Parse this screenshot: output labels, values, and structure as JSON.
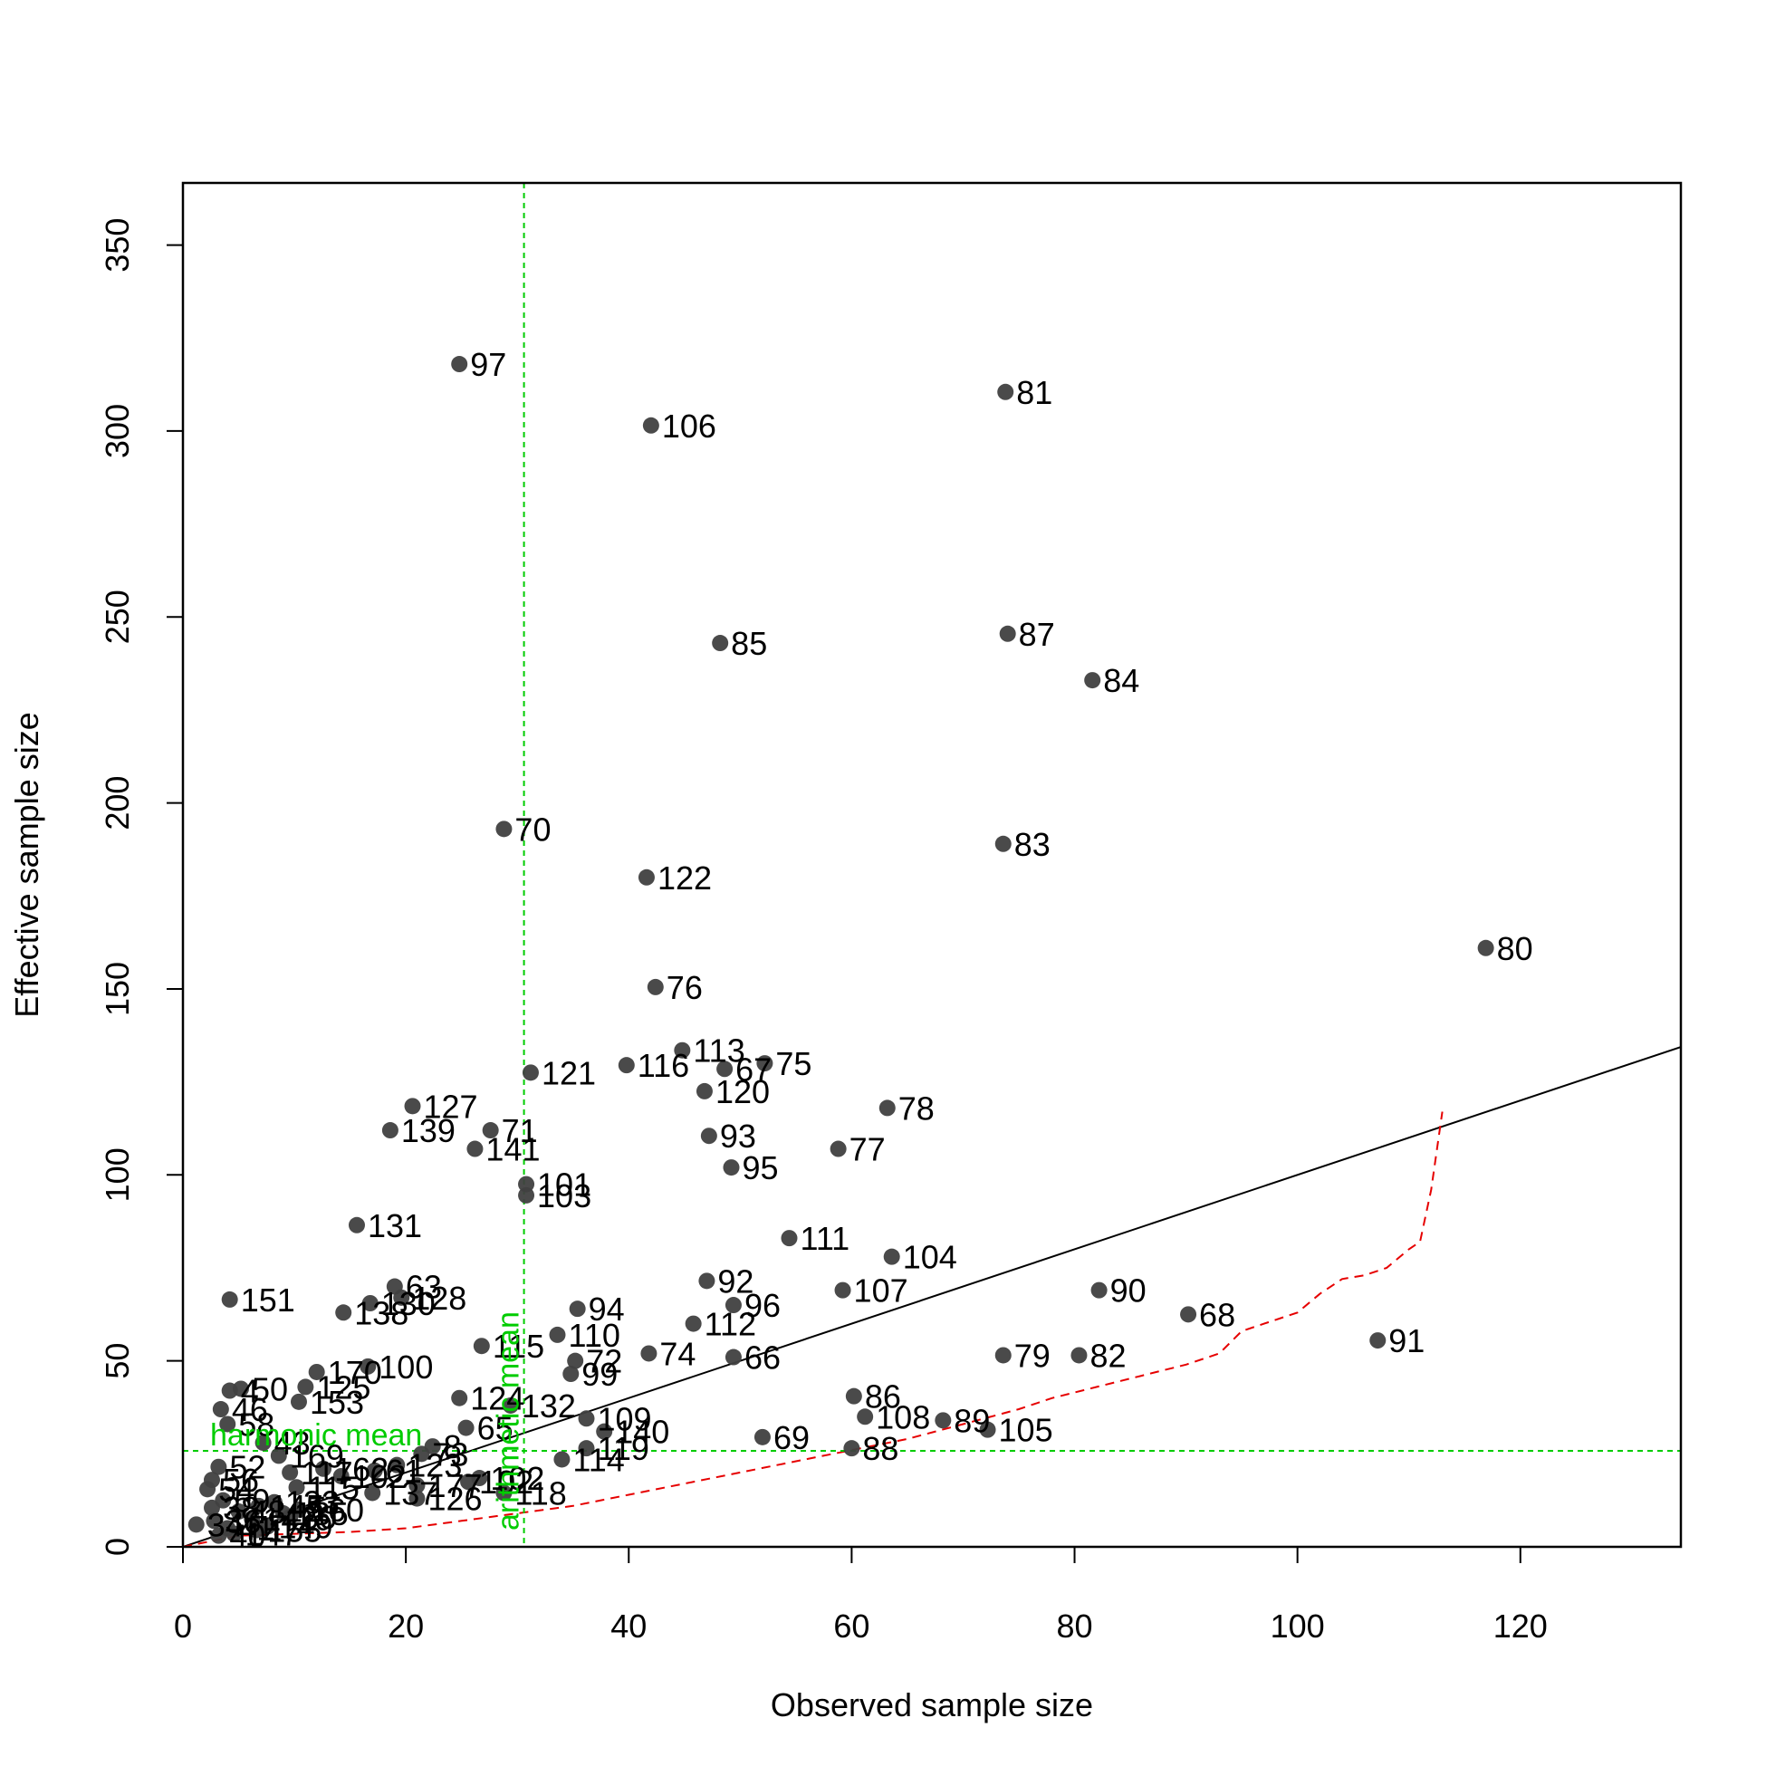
{
  "chart_data": {
    "type": "scatter",
    "xlabel": "Observed sample size",
    "ylabel": "Effective sample size",
    "xlim": [
      0,
      134.4
    ],
    "ylim": [
      0,
      366.7
    ],
    "xticks": [
      "0",
      "20",
      "40",
      "60",
      "80",
      "100",
      "120"
    ],
    "yticks": [
      "0",
      "50",
      "100",
      "150",
      "200",
      "250",
      "300",
      "350"
    ],
    "grid": false,
    "point_color": "#404040",
    "regression_color": "#000000",
    "reference_color": "#00cc00",
    "bound_color": "#e60000",
    "reference_lines": {
      "arithmetic_mean": {
        "label": "arithmetic mean",
        "x": 30.6
      },
      "harmonic_mean": {
        "label": "harmonic mean",
        "y": 25.8
      }
    },
    "regression_line": {
      "x": [
        0,
        134.4
      ],
      "y": [
        0,
        134.4
      ]
    },
    "lower_bound_curve": {
      "x": [
        0,
        5,
        10,
        15,
        20,
        25,
        30,
        35,
        40,
        45,
        50,
        55,
        60,
        65,
        70,
        75,
        78,
        82,
        86,
        90,
        93,
        95,
        100,
        102,
        104,
        106,
        108,
        110,
        111,
        112,
        113
      ],
      "y": [
        0,
        3,
        3.5,
        4,
        5,
        7,
        9,
        11,
        14,
        17,
        20,
        23,
        26,
        29,
        33,
        37,
        40,
        43,
        46,
        49,
        52,
        58,
        63,
        68,
        72,
        73,
        75,
        80,
        82,
        96,
        117
      ]
    },
    "points": [
      {
        "label": "97",
        "x": 24.8,
        "y": 318
      },
      {
        "label": "81",
        "x": 73.8,
        "y": 310.5
      },
      {
        "label": "106",
        "x": 42,
        "y": 301.5
      },
      {
        "label": "85",
        "x": 48.2,
        "y": 243
      },
      {
        "label": "87",
        "x": 74,
        "y": 245.5
      },
      {
        "label": "84",
        "x": 81.6,
        "y": 233
      },
      {
        "label": "70",
        "x": 28.8,
        "y": 193
      },
      {
        "label": "83",
        "x": 73.6,
        "y": 189
      },
      {
        "label": "122",
        "x": 41.6,
        "y": 180
      },
      {
        "label": "80",
        "x": 116.9,
        "y": 161
      },
      {
        "label": "76",
        "x": 42.4,
        "y": 150.5
      },
      {
        "label": "113",
        "x": 44.8,
        "y": 133.5
      },
      {
        "label": "116",
        "x": 39.8,
        "y": 129.5
      },
      {
        "label": "67",
        "x": 48.6,
        "y": 128.5
      },
      {
        "label": "75",
        "x": 52.2,
        "y": 130
      },
      {
        "label": "121",
        "x": 31.2,
        "y": 127.5
      },
      {
        "label": "120",
        "x": 46.8,
        "y": 122.5
      },
      {
        "label": "127",
        "x": 20.6,
        "y": 118.5
      },
      {
        "label": "78",
        "x": 63.2,
        "y": 118
      },
      {
        "label": "139",
        "x": 18.6,
        "y": 112
      },
      {
        "label": "71",
        "x": 27.6,
        "y": 112
      },
      {
        "label": "93",
        "x": 47.2,
        "y": 110.5
      },
      {
        "label": "141",
        "x": 26.2,
        "y": 107
      },
      {
        "label": "77",
        "x": 58.8,
        "y": 107
      },
      {
        "label": "95",
        "x": 49.2,
        "y": 102
      },
      {
        "label": "101",
        "x": 30.8,
        "y": 97.5
      },
      {
        "label": "103",
        "x": 30.8,
        "y": 94.5
      },
      {
        "label": "131",
        "x": 15.6,
        "y": 86.5
      },
      {
        "label": "111",
        "x": 54.4,
        "y": 83
      },
      {
        "label": "104",
        "x": 63.6,
        "y": 78
      },
      {
        "label": "92",
        "x": 47,
        "y": 71.5
      },
      {
        "label": "63",
        "x": 19,
        "y": 70
      },
      {
        "label": "107",
        "x": 59.2,
        "y": 69
      },
      {
        "label": "90",
        "x": 82.2,
        "y": 69
      },
      {
        "label": "128",
        "x": 19.6,
        "y": 67
      },
      {
        "label": "151",
        "x": 4.2,
        "y": 66.5
      },
      {
        "label": "130",
        "x": 16.8,
        "y": 65.5
      },
      {
        "label": "96",
        "x": 49.4,
        "y": 65
      },
      {
        "label": "94",
        "x": 35.4,
        "y": 64
      },
      {
        "label": "138",
        "x": 14.4,
        "y": 63
      },
      {
        "label": "68",
        "x": 90.2,
        "y": 62.5
      },
      {
        "label": "112",
        "x": 45.8,
        "y": 60
      },
      {
        "label": "110",
        "x": 33.6,
        "y": 57
      },
      {
        "label": "91",
        "x": 107.2,
        "y": 55.5
      },
      {
        "label": "115",
        "x": 26.8,
        "y": 54
      },
      {
        "label": "74",
        "x": 41.8,
        "y": 52
      },
      {
        "label": "79",
        "x": 73.6,
        "y": 51.5
      },
      {
        "label": "82",
        "x": 80.4,
        "y": 51.5
      },
      {
        "label": "66",
        "x": 49.4,
        "y": 51
      },
      {
        "label": "72",
        "x": 35.2,
        "y": 50
      },
      {
        "label": "100",
        "x": 16.6,
        "y": 48.5
      },
      {
        "label": "170",
        "x": 12,
        "y": 47
      },
      {
        "label": "99",
        "x": 34.8,
        "y": 46.5
      },
      {
        "label": "125",
        "x": 11,
        "y": 43
      },
      {
        "label": "50",
        "x": 5.2,
        "y": 42.5
      },
      {
        "label": "4",
        "x": 4.2,
        "y": 42
      },
      {
        "label": "86",
        "x": 60.2,
        "y": 40.5
      },
      {
        "label": "124",
        "x": 24.8,
        "y": 40
      },
      {
        "label": "153",
        "x": 10.4,
        "y": 39
      },
      {
        "label": "132",
        "x": 29.4,
        "y": 38
      },
      {
        "label": "46",
        "x": 3.4,
        "y": 37
      },
      {
        "label": "108",
        "x": 61.2,
        "y": 35
      },
      {
        "label": "109",
        "x": 36.2,
        "y": 34.5
      },
      {
        "label": "89",
        "x": 68.2,
        "y": 34
      },
      {
        "label": "58",
        "x": 4,
        "y": 33
      },
      {
        "label": "65",
        "x": 25.4,
        "y": 32
      },
      {
        "label": "105",
        "x": 72.2,
        "y": 31.5
      },
      {
        "label": "140",
        "x": 37.8,
        "y": 31
      },
      {
        "label": "69",
        "x": 52,
        "y": 29.5
      },
      {
        "label": "43",
        "x": 7.2,
        "y": 28
      },
      {
        "label": "8",
        "x": 22.4,
        "y": 27
      },
      {
        "label": "88",
        "x": 60,
        "y": 26.5
      },
      {
        "label": "119",
        "x": 36.2,
        "y": 26.5
      },
      {
        "label": "73",
        "x": 21.4,
        "y": 25
      },
      {
        "label": "169",
        "x": 8.6,
        "y": 24.5
      },
      {
        "label": "114",
        "x": 34,
        "y": 23.5
      },
      {
        "label": "123",
        "x": 19.2,
        "y": 22
      },
      {
        "label": "52",
        "x": 3.2,
        "y": 21.5
      },
      {
        "label": "162",
        "x": 12.6,
        "y": 21
      },
      {
        "label": "61",
        "x": 17.2,
        "y": 20.5
      },
      {
        "label": "117",
        "x": 9.6,
        "y": 20
      },
      {
        "label": "102",
        "x": 14.2,
        "y": 19
      },
      {
        "label": "102",
        "x": 26.6,
        "y": 18.5
      },
      {
        "label": "56",
        "x": 2.6,
        "y": 18
      },
      {
        "label": "102",
        "x": 25.6,
        "y": 17.5
      },
      {
        "label": "177",
        "x": 21,
        "y": 16.5
      },
      {
        "label": "115",
        "x": 10.2,
        "y": 16
      },
      {
        "label": "54",
        "x": 2.2,
        "y": 15.5
      },
      {
        "label": "118",
        "x": 28.8,
        "y": 14.5
      },
      {
        "label": "137",
        "x": 17,
        "y": 14.5
      },
      {
        "label": "126",
        "x": 21,
        "y": 13
      },
      {
        "label": "59",
        "x": 3.6,
        "y": 12.5
      },
      {
        "label": "133",
        "x": 8.2,
        "y": 12
      },
      {
        "label": "145",
        "x": 6.8,
        "y": 11
      },
      {
        "label": "38",
        "x": 2.6,
        "y": 10.5
      },
      {
        "label": "160",
        "x": 10.4,
        "y": 10
      },
      {
        "label": "48",
        "x": 5,
        "y": 9.5
      },
      {
        "label": "135",
        "x": 9,
        "y": 9
      },
      {
        "label": "60",
        "x": 9.6,
        "y": 8
      },
      {
        "label": "142",
        "x": 6.2,
        "y": 7.5
      },
      {
        "label": "36",
        "x": 2.8,
        "y": 7
      },
      {
        "label": "34",
        "x": 1.2,
        "y": 6
      },
      {
        "label": "149",
        "x": 7.6,
        "y": 5.5
      },
      {
        "label": "41",
        "x": 4,
        "y": 5
      },
      {
        "label": "155",
        "x": 6.6,
        "y": 4.5
      },
      {
        "label": "147",
        "x": 4.6,
        "y": 3.5
      },
      {
        "label": "40",
        "x": 3.2,
        "y": 3
      }
    ]
  }
}
